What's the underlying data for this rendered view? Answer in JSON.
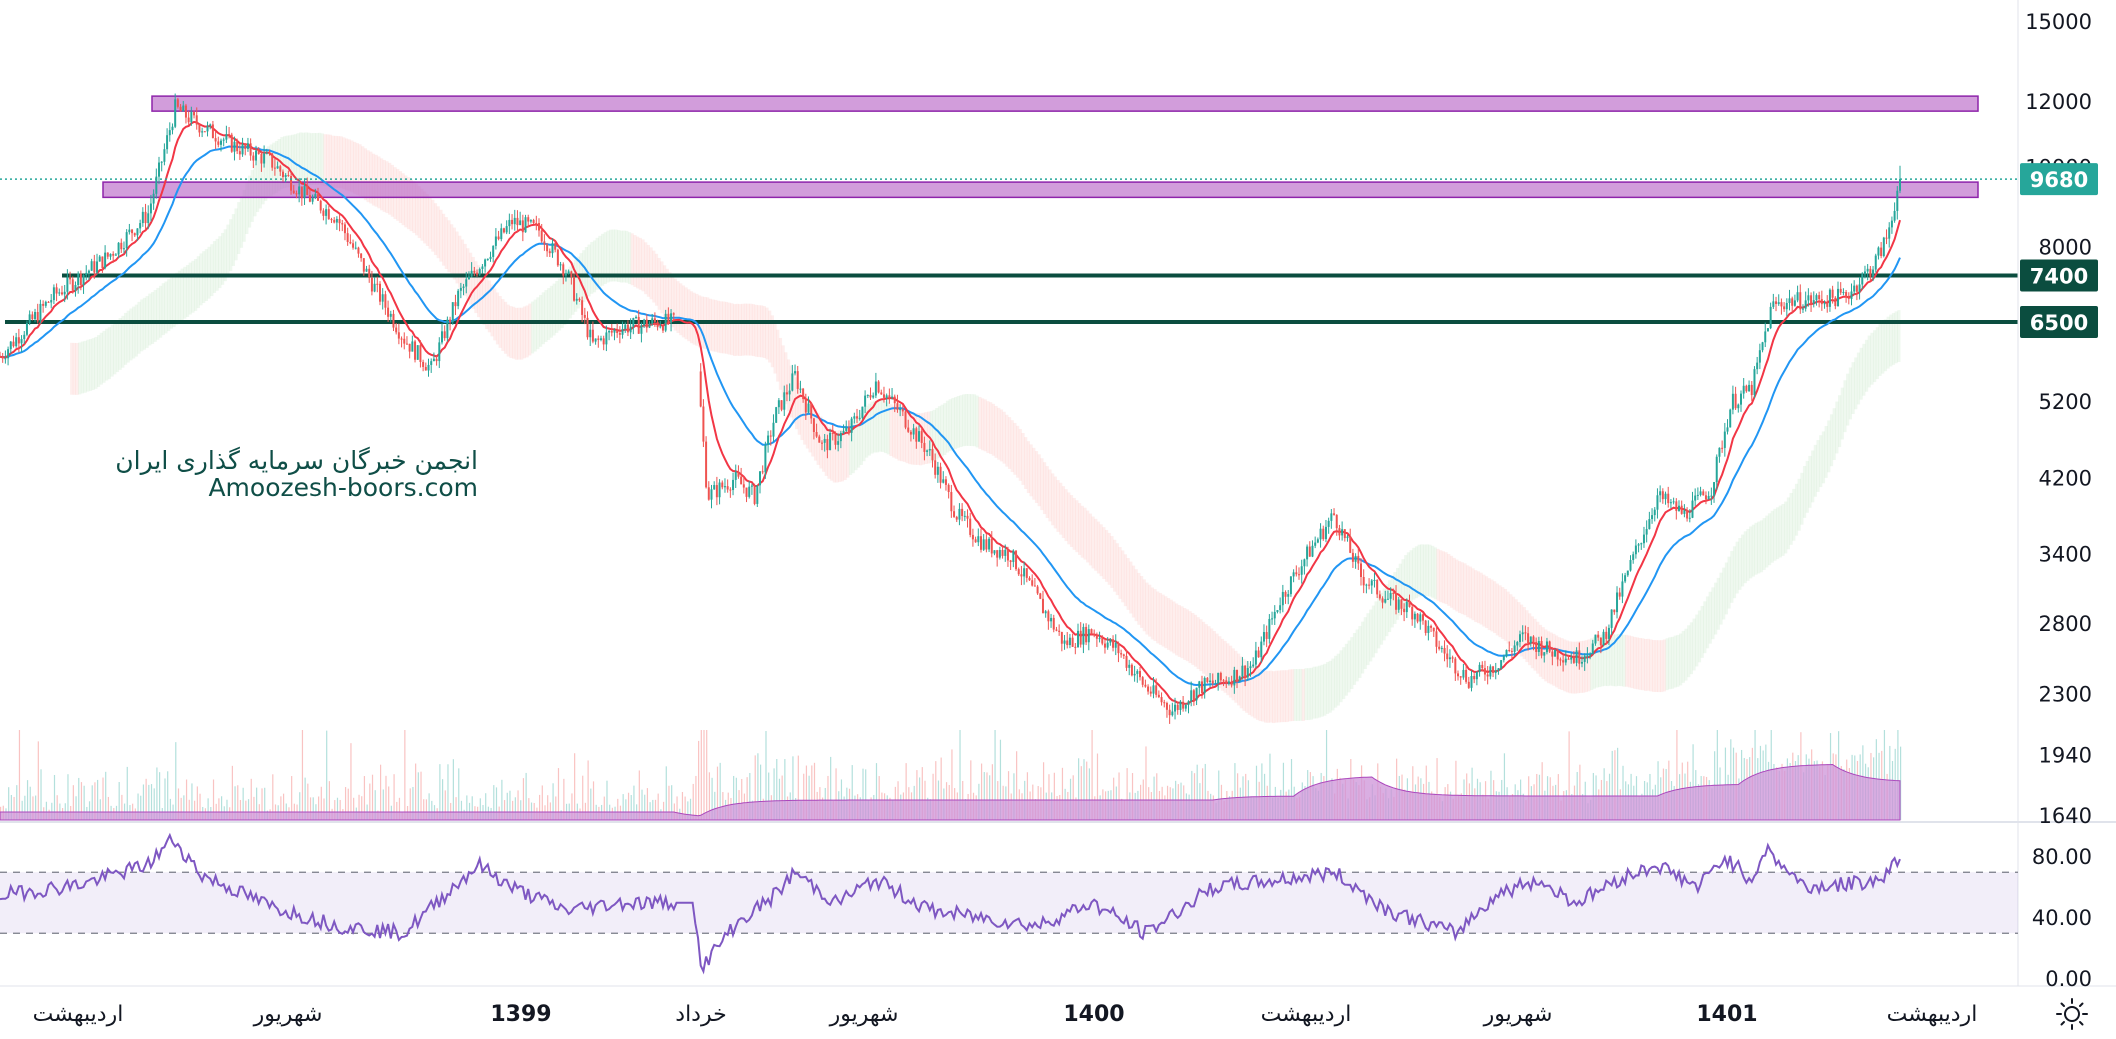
{
  "watermark": {
    "line1": "انجمن خبرگان سرمایه گذاری ایران",
    "line2": "Amoozesh-boors.com"
  },
  "colors": {
    "up": "#26a69a",
    "down": "#ef5350",
    "ema_fast": "#f23645",
    "ema_slow": "#2196f3",
    "rsi": "#7e57c2",
    "zone": "#ba68c8",
    "level": "#0b4d3f",
    "volume": "#ce93d8"
  },
  "chart_data": [
    {
      "type": "candlestick",
      "y_scale": "log",
      "y_ticks": [
        "15000",
        "12000",
        "10000",
        "8000",
        "5200",
        "4200",
        "3400",
        "2800",
        "2300",
        "1940",
        "1640"
      ],
      "y_tick_values": [
        15000,
        12000,
        10000,
        8000,
        5200,
        4200,
        3400,
        2800,
        2300,
        1940,
        1640
      ],
      "last_price": {
        "value": 9680,
        "label": "9680"
      },
      "levels": [
        {
          "value": 7400,
          "label": "7400"
        },
        {
          "value": 6500,
          "label": "6500"
        }
      ],
      "zones": [
        {
          "low": 11700,
          "high": 12200
        },
        {
          "low": 9200,
          "high": 9600
        }
      ],
      "series_points": [
        {
          "t": 0,
          "close": 5900
        },
        {
          "t": 40,
          "close": 7000
        },
        {
          "t": 80,
          "close": 7800
        },
        {
          "t": 110,
          "close": 8800
        },
        {
          "t": 130,
          "close": 11800
        },
        {
          "t": 150,
          "close": 11200
        },
        {
          "t": 175,
          "close": 10600
        },
        {
          "t": 200,
          "close": 10200
        },
        {
          "t": 225,
          "close": 9300
        },
        {
          "t": 250,
          "close": 8700
        },
        {
          "t": 275,
          "close": 7300
        },
        {
          "t": 300,
          "close": 6200
        },
        {
          "t": 320,
          "close": 5700
        },
        {
          "t": 340,
          "close": 7000
        },
        {
          "t": 360,
          "close": 7800
        },
        {
          "t": 380,
          "close": 8600
        },
        {
          "t": 400,
          "close": 8400
        },
        {
          "t": 420,
          "close": 7500
        },
        {
          "t": 440,
          "close": 6100
        },
        {
          "t": 460,
          "close": 6400
        },
        {
          "t": 490,
          "close": 6500
        },
        {
          "t": 515,
          "close": 6500
        },
        {
          "t": 525,
          "close": 4000
        },
        {
          "t": 545,
          "close": 4200
        },
        {
          "t": 560,
          "close": 4000
        },
        {
          "t": 575,
          "close": 5000
        },
        {
          "t": 590,
          "close": 5600
        },
        {
          "t": 610,
          "close": 4600
        },
        {
          "t": 630,
          "close": 4800
        },
        {
          "t": 650,
          "close": 5500
        },
        {
          "t": 670,
          "close": 5000
        },
        {
          "t": 690,
          "close": 4500
        },
        {
          "t": 710,
          "close": 3800
        },
        {
          "t": 730,
          "close": 3500
        },
        {
          "t": 750,
          "close": 3400
        },
        {
          "t": 770,
          "close": 3000
        },
        {
          "t": 790,
          "close": 2650
        },
        {
          "t": 810,
          "close": 2750
        },
        {
          "t": 830,
          "close": 2600
        },
        {
          "t": 850,
          "close": 2350
        },
        {
          "t": 870,
          "close": 2200
        },
        {
          "t": 890,
          "close": 2350
        },
        {
          "t": 910,
          "close": 2400
        },
        {
          "t": 930,
          "close": 2500
        },
        {
          "t": 950,
          "close": 3000
        },
        {
          "t": 970,
          "close": 3400
        },
        {
          "t": 990,
          "close": 3800
        },
        {
          "t": 1010,
          "close": 3200
        },
        {
          "t": 1030,
          "close": 3000
        },
        {
          "t": 1050,
          "close": 2900
        },
        {
          "t": 1070,
          "close": 2600
        },
        {
          "t": 1090,
          "close": 2400
        },
        {
          "t": 1110,
          "close": 2500
        },
        {
          "t": 1130,
          "close": 2700
        },
        {
          "t": 1150,
          "close": 2600
        },
        {
          "t": 1170,
          "close": 2550
        },
        {
          "t": 1190,
          "close": 2700
        },
        {
          "t": 1210,
          "close": 3300
        },
        {
          "t": 1230,
          "close": 4000
        },
        {
          "t": 1250,
          "close": 3800
        },
        {
          "t": 1270,
          "close": 4100
        },
        {
          "t": 1285,
          "close": 5200
        },
        {
          "t": 1300,
          "close": 5400
        },
        {
          "t": 1315,
          "close": 6800
        },
        {
          "t": 1330,
          "close": 6900
        },
        {
          "t": 1350,
          "close": 6900
        },
        {
          "t": 1370,
          "close": 7000
        },
        {
          "t": 1390,
          "close": 7600
        },
        {
          "t": 1400,
          "close": 8200
        },
        {
          "t": 1410,
          "close": 9680
        }
      ]
    },
    {
      "type": "line",
      "name": "RSI",
      "y_ticks": [
        "80.00",
        "40.00",
        "0.00"
      ],
      "y_tick_values": [
        80,
        40,
        0
      ],
      "band": [
        70,
        30
      ],
      "points": [
        {
          "t": 0,
          "v": 55
        },
        {
          "t": 60,
          "v": 62
        },
        {
          "t": 110,
          "v": 75
        },
        {
          "t": 128,
          "v": 92
        },
        {
          "t": 150,
          "v": 68
        },
        {
          "t": 200,
          "v": 48
        },
        {
          "t": 250,
          "v": 35
        },
        {
          "t": 300,
          "v": 30
        },
        {
          "t": 330,
          "v": 55
        },
        {
          "t": 355,
          "v": 75
        },
        {
          "t": 380,
          "v": 60
        },
        {
          "t": 420,
          "v": 45
        },
        {
          "t": 460,
          "v": 50
        },
        {
          "t": 515,
          "v": 50
        },
        {
          "t": 520,
          "v": 7
        },
        {
          "t": 545,
          "v": 35
        },
        {
          "t": 575,
          "v": 55
        },
        {
          "t": 590,
          "v": 70
        },
        {
          "t": 620,
          "v": 50
        },
        {
          "t": 650,
          "v": 65
        },
        {
          "t": 690,
          "v": 45
        },
        {
          "t": 730,
          "v": 40
        },
        {
          "t": 770,
          "v": 35
        },
        {
          "t": 810,
          "v": 50
        },
        {
          "t": 850,
          "v": 30
        },
        {
          "t": 900,
          "v": 60
        },
        {
          "t": 950,
          "v": 65
        },
        {
          "t": 990,
          "v": 70
        },
        {
          "t": 1030,
          "v": 45
        },
        {
          "t": 1080,
          "v": 30
        },
        {
          "t": 1110,
          "v": 55
        },
        {
          "t": 1140,
          "v": 65
        },
        {
          "t": 1170,
          "v": 50
        },
        {
          "t": 1200,
          "v": 65
        },
        {
          "t": 1230,
          "v": 75
        },
        {
          "t": 1260,
          "v": 60
        },
        {
          "t": 1280,
          "v": 80
        },
        {
          "t": 1300,
          "v": 65
        },
        {
          "t": 1310,
          "v": 85
        },
        {
          "t": 1340,
          "v": 60
        },
        {
          "t": 1370,
          "v": 62
        },
        {
          "t": 1395,
          "v": 65
        },
        {
          "t": 1410,
          "v": 80
        }
      ]
    }
  ],
  "time_axis": {
    "labels": [
      "اردیبهشت",
      "شهریور",
      "1399",
      "خرداد",
      "شهریور",
      "1400",
      "اردیبهشت",
      "شهریور",
      "1401",
      "اردیبهشت"
    ],
    "bold": [
      false,
      false,
      true,
      false,
      false,
      true,
      false,
      false,
      true,
      false
    ]
  },
  "icons": {
    "settings": "sun-gear-icon"
  }
}
